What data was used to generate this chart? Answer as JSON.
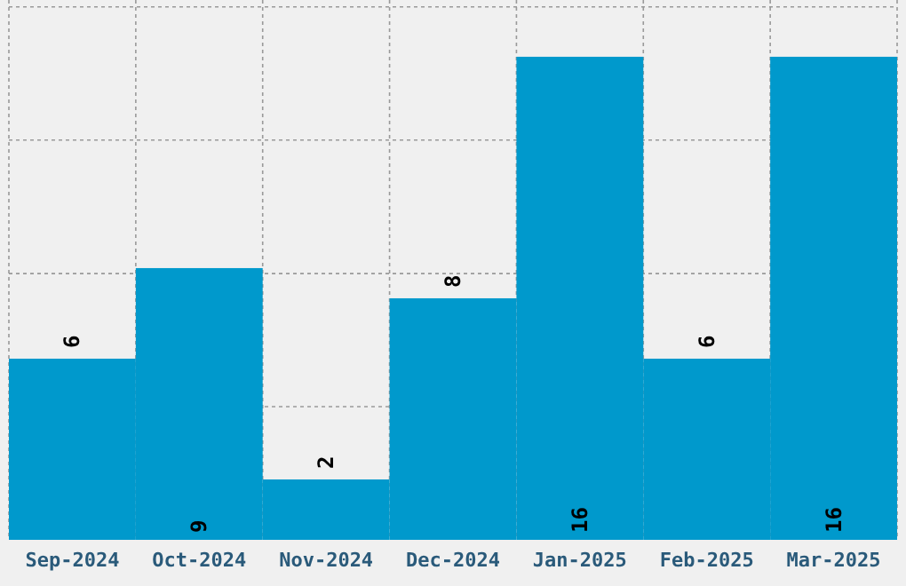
{
  "chart_data": {
    "type": "bar",
    "categories": [
      "Sep-2024",
      "Oct-2024",
      "Nov-2024",
      "Dec-2024",
      "Jan-2025",
      "Feb-2025",
      "Mar-2025"
    ],
    "values": [
      6,
      9,
      2,
      8,
      16,
      6,
      16
    ],
    "color": "#0099cc",
    "data_labels": true,
    "ylim": [
      0,
      17.88
    ],
    "yticks": [
      {
        "value": 4.41,
        "label": null
      },
      {
        "value": 8.82,
        "label": null
      },
      {
        "value": 13.24,
        "label": null
      },
      {
        "value": 17.65,
        "label": null
      }
    ],
    "grid": true,
    "tick_labels": "x"
  }
}
